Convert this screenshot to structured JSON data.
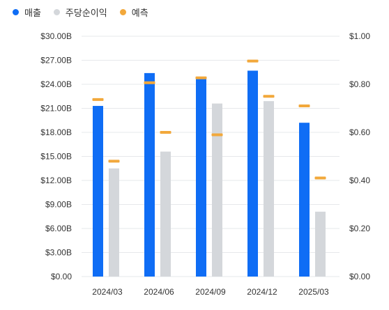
{
  "legend": [
    {
      "label": "매출",
      "color": "#0f6df5"
    },
    {
      "label": "주당순이익",
      "color": "#d4d7db"
    },
    {
      "label": "예측",
      "color": "#f2a83b"
    }
  ],
  "chart_data": {
    "type": "bar",
    "categories": [
      "2024/03",
      "2024/06",
      "2024/09",
      "2024/12",
      "2025/03"
    ],
    "left_axis": {
      "ylim": [
        0,
        30
      ],
      "ticks": [
        "$0.00",
        "$3.00B",
        "$6.00B",
        "$9.00B",
        "$12.00B",
        "$15.00B",
        "$18.00B",
        "$21.00B",
        "$24.00B",
        "$27.00B",
        "$30.00B"
      ]
    },
    "right_axis": {
      "ylim": [
        0,
        1
      ],
      "ticks": [
        "$0.00",
        "$0.20",
        "$0.40",
        "$0.60",
        "$0.80",
        "$1.00"
      ]
    },
    "series": [
      {
        "name": "매출",
        "axis": "left",
        "color": "#0f6df5",
        "values": [
          21.3,
          25.4,
          24.9,
          25.7,
          19.2
        ]
      },
      {
        "name": "주당순이익",
        "axis": "right",
        "color": "#d4d7db",
        "values": [
          0.45,
          0.52,
          0.72,
          0.73,
          0.27
        ]
      }
    ],
    "forecast": {
      "name": "예측",
      "color": "#f2a83b",
      "revenue": [
        22.1,
        24.2,
        24.8,
        26.9,
        21.3
      ],
      "eps": [
        0.48,
        0.6,
        0.59,
        0.75,
        0.41
      ]
    },
    "grid": true,
    "legend_position": "top-left"
  }
}
